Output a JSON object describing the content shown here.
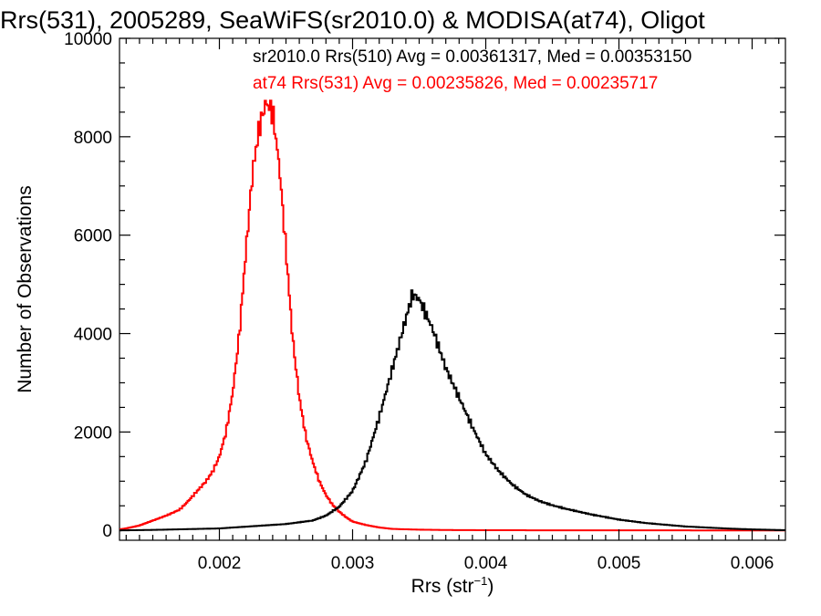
{
  "chart_data": {
    "type": "histogram",
    "title": "Rrs(531), 2005289, SeaWiFS(sr2010.0) & MODISA(at74), Oligot",
    "xlabel": "Rrs (str",
    "xlabel_sup": "−1",
    "xlabel_close": ")",
    "ylabel": "Number of Observations",
    "xlim": [
      0.00125,
      0.00625
    ],
    "ylim": [
      -200,
      10000
    ],
    "grid": false,
    "x_ticks": [
      0.002,
      0.003,
      0.004,
      0.005,
      0.006
    ],
    "x_tick_labels": [
      "0.002",
      "0.003",
      "0.004",
      "0.005",
      "0.006"
    ],
    "y_ticks": [
      0,
      2000,
      4000,
      6000,
      8000,
      10000
    ],
    "y_tick_labels": [
      "0",
      "2000",
      "4000",
      "6000",
      "8000",
      "10000"
    ],
    "annotations": [
      {
        "text": "sr2010.0 Rrs(510) Avg = 0.00361317, Med = 0.00353150",
        "color": "#000000"
      },
      {
        "text": "at74 Rrs(531) Avg = 0.00235826, Med = 0.00235717",
        "color": "#ff0000"
      }
    ],
    "series": [
      {
        "color": "#ff0000",
        "x": [
          0.00125,
          0.0013,
          0.0014,
          0.0015,
          0.0016,
          0.0017,
          0.00175,
          0.0018,
          0.00185,
          0.0019,
          0.00195,
          0.002,
          0.00205,
          0.0021,
          0.00215,
          0.0022,
          0.00225,
          0.0023,
          0.00235,
          0.0024,
          0.00245,
          0.0025,
          0.00255,
          0.0026,
          0.00265,
          0.0027,
          0.00275,
          0.0028,
          0.00285,
          0.0029,
          0.00295,
          0.003,
          0.0031,
          0.0032,
          0.0033,
          0.0035,
          0.0037,
          0.004,
          0.0045,
          0.005,
          0.00625
        ],
        "y": [
          20,
          40,
          100,
          200,
          300,
          420,
          550,
          700,
          850,
          1000,
          1200,
          1500,
          2000,
          2800,
          4000,
          5700,
          7300,
          8200,
          8700,
          8500,
          7400,
          5700,
          3900,
          2700,
          1900,
          1400,
          1000,
          720,
          520,
          380,
          270,
          180,
          110,
          60,
          30,
          15,
          8,
          4,
          2,
          1,
          0
        ]
      },
      {
        "color": "#000000",
        "x": [
          0.00125,
          0.0015,
          0.002,
          0.0025,
          0.0027,
          0.0028,
          0.0029,
          0.003,
          0.0031,
          0.0032,
          0.0033,
          0.0034,
          0.00345,
          0.0035,
          0.0036,
          0.0037,
          0.0038,
          0.0039,
          0.004,
          0.0041,
          0.0042,
          0.0043,
          0.0044,
          0.0045,
          0.0046,
          0.0048,
          0.005,
          0.0052,
          0.0055,
          0.0058,
          0.006,
          0.00625
        ],
        "y": [
          0,
          10,
          40,
          130,
          200,
          300,
          480,
          800,
          1400,
          2300,
          3300,
          4300,
          4800,
          4700,
          4100,
          3300,
          2700,
          2100,
          1550,
          1200,
          930,
          730,
          600,
          510,
          440,
          320,
          220,
          150,
          80,
          40,
          20,
          5
        ]
      }
    ]
  }
}
